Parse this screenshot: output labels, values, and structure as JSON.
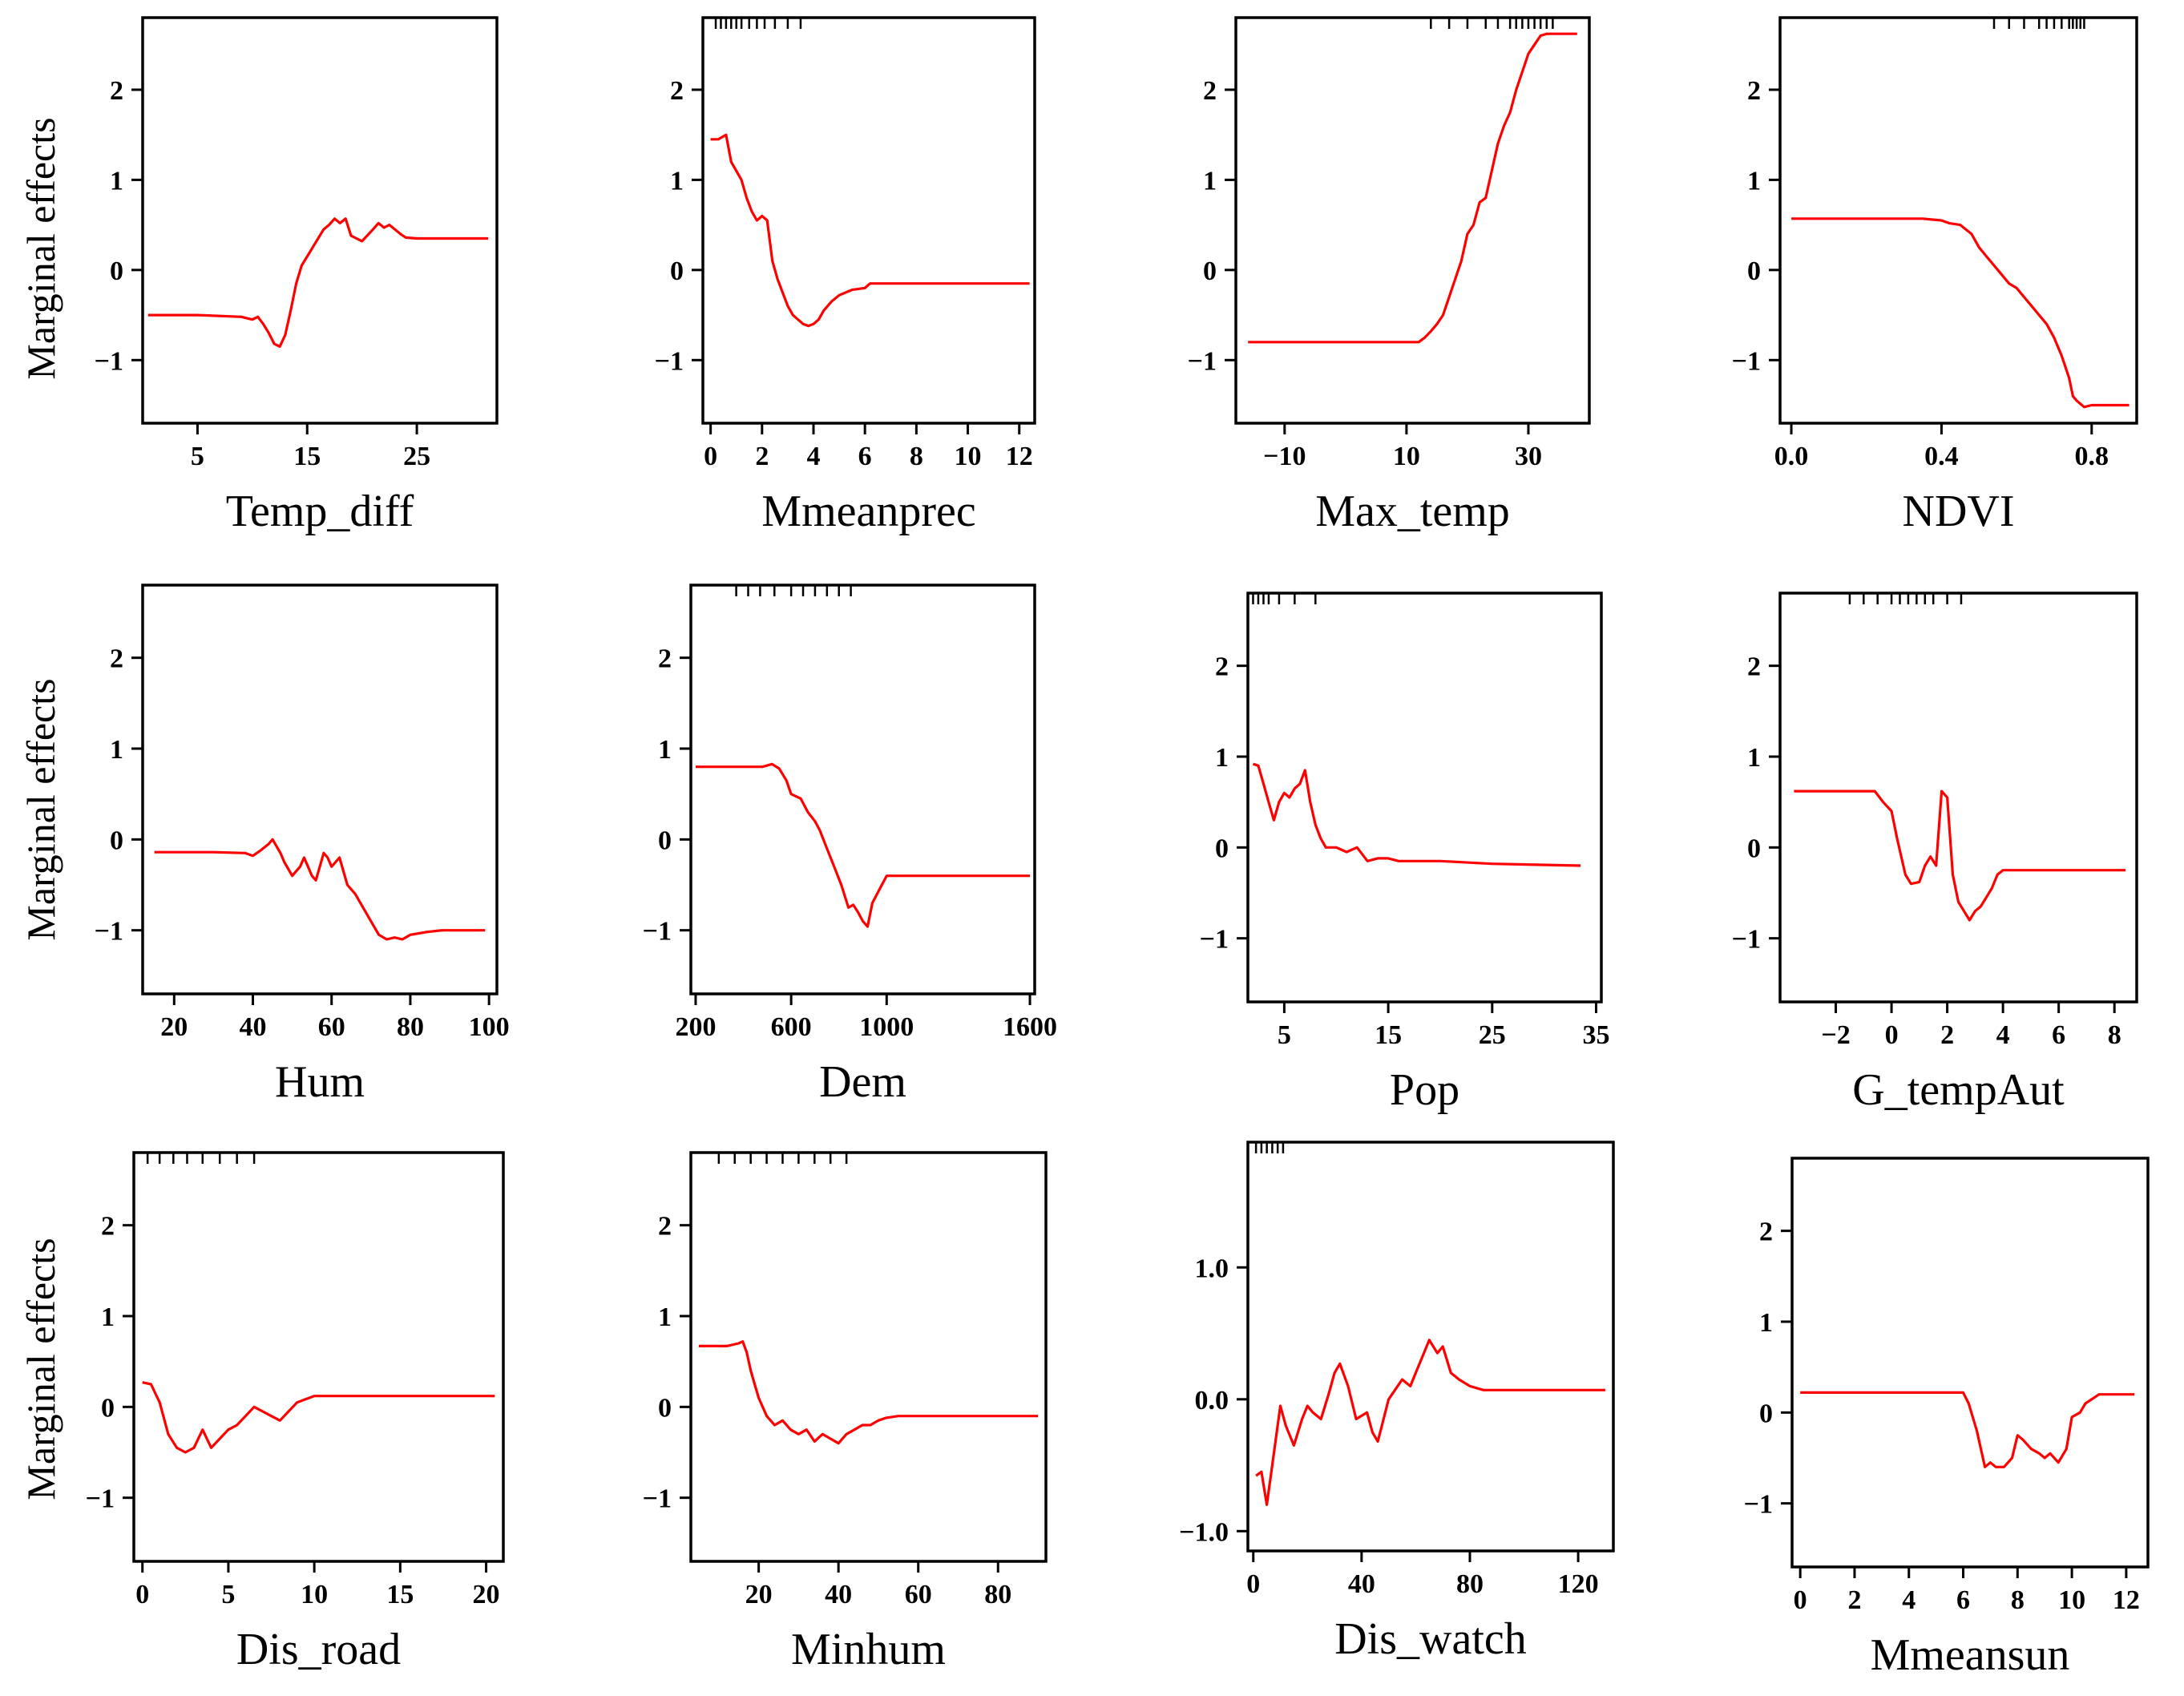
{
  "figure": {
    "y_axis_label": "Marginal effects"
  },
  "chart_data": [
    {
      "type": "line",
      "xlabel": "Temp_diff",
      "ylabel": "Marginal effects",
      "xlim": [
        0,
        32.3
      ],
      "ylim": [
        -1.7,
        2.8
      ],
      "xticks": [
        5,
        15,
        25
      ],
      "yticks": [
        -1,
        0,
        1,
        2
      ],
      "yformat": 0,
      "rug": [],
      "x": [
        0.5,
        5,
        9,
        10,
        10.5,
        11,
        11.5,
        12,
        12.5,
        13,
        13.5,
        14,
        14.5,
        15,
        15.5,
        16,
        16.5,
        17,
        17.5,
        18,
        18.5,
        19,
        19.5,
        20,
        21,
        21.5,
        22,
        22.5,
        23,
        23.5,
        24,
        25,
        31.5
      ],
      "y": [
        -0.5,
        -0.5,
        -0.52,
        -0.55,
        -0.52,
        -0.6,
        -0.7,
        -0.82,
        -0.85,
        -0.72,
        -0.45,
        -0.15,
        0.05,
        0.15,
        0.25,
        0.35,
        0.45,
        0.5,
        0.57,
        0.52,
        0.57,
        0.38,
        0.35,
        0.32,
        0.45,
        0.52,
        0.47,
        0.5,
        0.45,
        0.4,
        0.36,
        0.35,
        0.35
      ]
    },
    {
      "type": "line",
      "xlabel": "Mmeanprec",
      "ylabel": "Marginal effects",
      "xlim": [
        -0.3,
        12.6
      ],
      "ylim": [
        -1.7,
        2.8
      ],
      "xticks": [
        0,
        2,
        4,
        6,
        8,
        10,
        12
      ],
      "yticks": [
        -1,
        0,
        1,
        2
      ],
      "yformat": 0,
      "rug": [
        0.2,
        0.4,
        0.6,
        0.8,
        1.0,
        1.2,
        1.5,
        1.8,
        2.1,
        2.5,
        3.0,
        3.5
      ],
      "x": [
        0,
        0.3,
        0.6,
        0.8,
        1.0,
        1.2,
        1.4,
        1.6,
        1.8,
        2.0,
        2.2,
        2.4,
        2.6,
        2.8,
        3.0,
        3.2,
        3.4,
        3.6,
        3.8,
        4.0,
        4.2,
        4.4,
        4.7,
        5.0,
        5.5,
        6.0,
        6.2,
        6.5,
        12.4
      ],
      "y": [
        1.45,
        1.45,
        1.5,
        1.2,
        1.1,
        1.0,
        0.8,
        0.65,
        0.55,
        0.6,
        0.55,
        0.1,
        -0.1,
        -0.25,
        -0.4,
        -0.5,
        -0.55,
        -0.6,
        -0.62,
        -0.6,
        -0.55,
        -0.45,
        -0.35,
        -0.28,
        -0.22,
        -0.2,
        -0.15,
        -0.15,
        -0.15
      ]
    },
    {
      "type": "line",
      "xlabel": "Max_temp",
      "ylabel": "Marginal effects",
      "xlim": [
        -18,
        40
      ],
      "ylim": [
        -1.7,
        2.8
      ],
      "xticks": [
        -10,
        10,
        30
      ],
      "yticks": [
        -1,
        0,
        1,
        2
      ],
      "yformat": 0,
      "rug": [
        14,
        17,
        20,
        23,
        25,
        27,
        28,
        29,
        30,
        31,
        32,
        33,
        34
      ],
      "x": [
        -16,
        0,
        12,
        13,
        14,
        15,
        16,
        17,
        18,
        19,
        20,
        21,
        22,
        23,
        24,
        25,
        26,
        27,
        28,
        29,
        30,
        31,
        32,
        33,
        34,
        38
      ],
      "y": [
        -0.8,
        -0.8,
        -0.8,
        -0.75,
        -0.68,
        -0.6,
        -0.5,
        -0.3,
        -0.1,
        0.1,
        0.4,
        0.5,
        0.75,
        0.8,
        1.1,
        1.4,
        1.6,
        1.75,
        2.0,
        2.2,
        2.4,
        2.5,
        2.6,
        2.62,
        2.62,
        2.62
      ]
    },
    {
      "type": "line",
      "xlabel": "NDVI",
      "ylabel": "Marginal effects",
      "xlim": [
        -0.03,
        0.92
      ],
      "ylim": [
        -1.7,
        2.8
      ],
      "xticks": [
        0.0,
        0.4,
        0.8
      ],
      "yticks": [
        -1,
        0,
        1,
        2
      ],
      "yformat": 0,
      "rug": [
        0.54,
        0.58,
        0.62,
        0.66,
        0.68,
        0.7,
        0.72,
        0.74,
        0.75,
        0.76,
        0.77,
        0.78
      ],
      "x": [
        0.0,
        0.2,
        0.35,
        0.4,
        0.42,
        0.45,
        0.48,
        0.5,
        0.52,
        0.55,
        0.58,
        0.6,
        0.62,
        0.65,
        0.68,
        0.7,
        0.72,
        0.74,
        0.75,
        0.76,
        0.78,
        0.8,
        0.82,
        0.9
      ],
      "y": [
        0.57,
        0.57,
        0.57,
        0.55,
        0.52,
        0.5,
        0.4,
        0.25,
        0.15,
        0.0,
        -0.15,
        -0.2,
        -0.3,
        -0.45,
        -0.6,
        -0.75,
        -0.95,
        -1.2,
        -1.4,
        -1.45,
        -1.52,
        -1.5,
        -1.5,
        -1.5
      ]
    },
    {
      "type": "line",
      "xlabel": "Hum",
      "ylabel": "Marginal effects",
      "xlim": [
        12,
        102
      ],
      "ylim": [
        -1.7,
        2.8
      ],
      "xticks": [
        20,
        40,
        60,
        80,
        100
      ],
      "yticks": [
        -1,
        0,
        1,
        2
      ],
      "yformat": 0,
      "rug": [],
      "x": [
        15,
        30,
        38,
        40,
        42,
        44,
        45,
        47,
        48,
        50,
        52,
        53,
        54,
        55,
        56,
        57,
        58,
        59,
        60,
        62,
        64,
        66,
        68,
        70,
        72,
        74,
        76,
        78,
        80,
        84,
        88,
        99
      ],
      "y": [
        -0.14,
        -0.14,
        -0.15,
        -0.18,
        -0.12,
        -0.05,
        0.0,
        -0.15,
        -0.25,
        -0.4,
        -0.3,
        -0.2,
        -0.3,
        -0.4,
        -0.45,
        -0.3,
        -0.15,
        -0.2,
        -0.3,
        -0.2,
        -0.5,
        -0.6,
        -0.75,
        -0.9,
        -1.05,
        -1.1,
        -1.08,
        -1.1,
        -1.05,
        -1.02,
        -1.0,
        -1.0
      ]
    },
    {
      "type": "line",
      "xlabel": "Dem",
      "ylabel": "Marginal effects",
      "xlim": [
        180,
        1620
      ],
      "ylim": [
        -1.7,
        2.8
      ],
      "xticks": [
        200,
        600,
        1000,
        1600
      ],
      "yticks": [
        -1,
        0,
        1,
        2
      ],
      "yformat": 0,
      "rug": [
        370,
        420,
        470,
        530,
        600,
        650,
        700,
        750,
        800,
        850
      ],
      "x": [
        200,
        400,
        480,
        520,
        550,
        580,
        600,
        640,
        670,
        700,
        720,
        750,
        780,
        810,
        840,
        860,
        880,
        900,
        920,
        940,
        960,
        980,
        1000,
        1050,
        1100,
        1600
      ],
      "y": [
        0.8,
        0.8,
        0.8,
        0.83,
        0.78,
        0.65,
        0.5,
        0.45,
        0.3,
        0.2,
        0.1,
        -0.1,
        -0.3,
        -0.5,
        -0.75,
        -0.72,
        -0.8,
        -0.9,
        -0.96,
        -0.7,
        -0.6,
        -0.5,
        -0.4,
        -0.4,
        -0.4,
        -0.4
      ]
    },
    {
      "type": "line",
      "xlabel": "Pop",
      "ylabel": "Marginal effects",
      "xlim": [
        1.5,
        35.5
      ],
      "ylim": [
        -1.7,
        2.8
      ],
      "xticks": [
        5,
        15,
        25,
        35
      ],
      "yticks": [
        -1,
        0,
        1,
        2
      ],
      "yformat": 0,
      "rug": [
        2,
        2.5,
        3,
        3.5,
        4.5,
        6,
        8
      ],
      "x": [
        2,
        2.5,
        3,
        3.5,
        4,
        4.5,
        5,
        5.5,
        6,
        6.5,
        7,
        7.5,
        8,
        8.5,
        9,
        10,
        11,
        12,
        13,
        14,
        15,
        16,
        20,
        25,
        33.5
      ],
      "y": [
        0.92,
        0.9,
        0.7,
        0.5,
        0.3,
        0.5,
        0.6,
        0.55,
        0.65,
        0.7,
        0.85,
        0.5,
        0.25,
        0.1,
        0.0,
        0.0,
        -0.05,
        0.0,
        -0.15,
        -0.12,
        -0.12,
        -0.15,
        -0.15,
        -0.18,
        -0.2
      ]
    },
    {
      "type": "line",
      "xlabel": "G_tempAut",
      "ylabel": "Marginal effects",
      "xlim": [
        -4,
        8.8
      ],
      "ylim": [
        -1.7,
        2.8
      ],
      "xticks": [
        -2,
        0,
        2,
        4,
        6,
        8
      ],
      "yticks": [
        -1,
        0,
        1,
        2
      ],
      "yformat": 0,
      "rug": [
        -1.5,
        -1,
        -0.5,
        0,
        0.3,
        0.6,
        0.9,
        1.2,
        1.5,
        2.0,
        2.5
      ],
      "x": [
        -3.5,
        -1,
        -0.6,
        -0.3,
        0.0,
        0.2,
        0.5,
        0.7,
        1.0,
        1.2,
        1.4,
        1.6,
        1.8,
        2.0,
        2.2,
        2.4,
        2.6,
        2.8,
        3.0,
        3.2,
        3.4,
        3.6,
        3.8,
        4.0,
        8.4
      ],
      "y": [
        0.62,
        0.62,
        0.62,
        0.5,
        0.4,
        0.1,
        -0.3,
        -0.4,
        -0.38,
        -0.2,
        -0.1,
        -0.2,
        0.62,
        0.55,
        -0.3,
        -0.6,
        -0.7,
        -0.8,
        -0.7,
        -0.65,
        -0.55,
        -0.45,
        -0.3,
        -0.25,
        -0.25
      ]
    },
    {
      "type": "line",
      "xlabel": "Dis_road",
      "ylabel": "Marginal effects",
      "xlim": [
        -0.5,
        21
      ],
      "ylim": [
        -1.7,
        2.8
      ],
      "xticks": [
        0,
        5,
        10,
        15,
        20
      ],
      "yticks": [
        -1,
        0,
        1,
        2
      ],
      "yformat": 0,
      "rug": [
        0.3,
        1.0,
        1.8,
        2.6,
        3.5,
        4.5,
        5.5,
        6.5
      ],
      "x": [
        0,
        0.5,
        1,
        1.5,
        2,
        2.5,
        3,
        3.5,
        4,
        4.5,
        5,
        5.5,
        6,
        6.5,
        7,
        7.5,
        8,
        9,
        10,
        12,
        20.5
      ],
      "y": [
        0.27,
        0.25,
        0.05,
        -0.3,
        -0.45,
        -0.5,
        -0.45,
        -0.25,
        -0.45,
        -0.35,
        -0.25,
        -0.2,
        -0.1,
        0.0,
        -0.05,
        -0.1,
        -0.15,
        0.05,
        0.12,
        0.12,
        0.12
      ]
    },
    {
      "type": "line",
      "xlabel": "Minhum",
      "ylabel": "Marginal effects",
      "xlim": [
        3,
        92
      ],
      "ylim": [
        -1.7,
        2.8
      ],
      "xticks": [
        20,
        40,
        60,
        80
      ],
      "yticks": [
        -1,
        0,
        1,
        2
      ],
      "yformat": 0,
      "rug": [
        10,
        14,
        18,
        22,
        26,
        30,
        34,
        38,
        42
      ],
      "x": [
        5,
        12,
        15,
        16,
        17,
        18,
        19,
        20,
        22,
        24,
        26,
        28,
        30,
        32,
        34,
        36,
        38,
        40,
        42,
        44,
        46,
        48,
        50,
        52,
        55,
        90
      ],
      "y": [
        0.67,
        0.67,
        0.7,
        0.72,
        0.6,
        0.4,
        0.25,
        0.1,
        -0.1,
        -0.2,
        -0.15,
        -0.25,
        -0.3,
        -0.25,
        -0.38,
        -0.3,
        -0.35,
        -0.4,
        -0.3,
        -0.25,
        -0.2,
        -0.2,
        -0.15,
        -0.12,
        -0.1,
        -0.1
      ]
    },
    {
      "type": "line",
      "xlabel": "Dis_watch",
      "ylabel": "Marginal effects",
      "xlim": [
        -2,
        133
      ],
      "ylim": [
        -1.15,
        1.95
      ],
      "xticks": [
        0,
        40,
        80,
        120
      ],
      "yticks": [
        -1.0,
        0.0,
        1.0
      ],
      "yformat": 1,
      "rug": [
        1,
        3,
        5,
        7,
        9,
        11
      ],
      "x": [
        1,
        3,
        5,
        7,
        10,
        12,
        15,
        18,
        20,
        22,
        25,
        28,
        30,
        32,
        35,
        38,
        42,
        44,
        46,
        50,
        55,
        58,
        60,
        63,
        65,
        68,
        70,
        73,
        76,
        80,
        85,
        130
      ],
      "y": [
        -0.58,
        -0.55,
        -0.8,
        -0.5,
        -0.05,
        -0.2,
        -0.35,
        -0.15,
        -0.05,
        -0.1,
        -0.15,
        0.05,
        0.2,
        0.27,
        0.1,
        -0.15,
        -0.1,
        -0.25,
        -0.32,
        0.0,
        0.15,
        0.1,
        0.2,
        0.35,
        0.45,
        0.35,
        0.4,
        0.2,
        0.15,
        0.1,
        0.07,
        0.07
      ]
    },
    {
      "type": "line",
      "xlabel": "Mmeansun",
      "ylabel": "Marginal effects",
      "xlim": [
        -0.3,
        12.8
      ],
      "ylim": [
        -1.7,
        2.8
      ],
      "xticks": [
        0,
        2,
        4,
        6,
        8,
        10,
        12
      ],
      "yticks": [
        -1,
        0,
        1,
        2
      ],
      "yformat": 0,
      "rug": [],
      "x": [
        0,
        5,
        6,
        6.2,
        6.5,
        6.8,
        7.0,
        7.2,
        7.5,
        7.8,
        8.0,
        8.2,
        8.5,
        8.8,
        9.0,
        9.2,
        9.5,
        9.8,
        10.0,
        10.3,
        10.5,
        11,
        12.3
      ],
      "y": [
        0.22,
        0.22,
        0.22,
        0.1,
        -0.2,
        -0.6,
        -0.55,
        -0.6,
        -0.6,
        -0.5,
        -0.25,
        -0.3,
        -0.4,
        -0.45,
        -0.5,
        -0.45,
        -0.55,
        -0.4,
        -0.05,
        0.0,
        0.1,
        0.2,
        0.2
      ]
    }
  ]
}
